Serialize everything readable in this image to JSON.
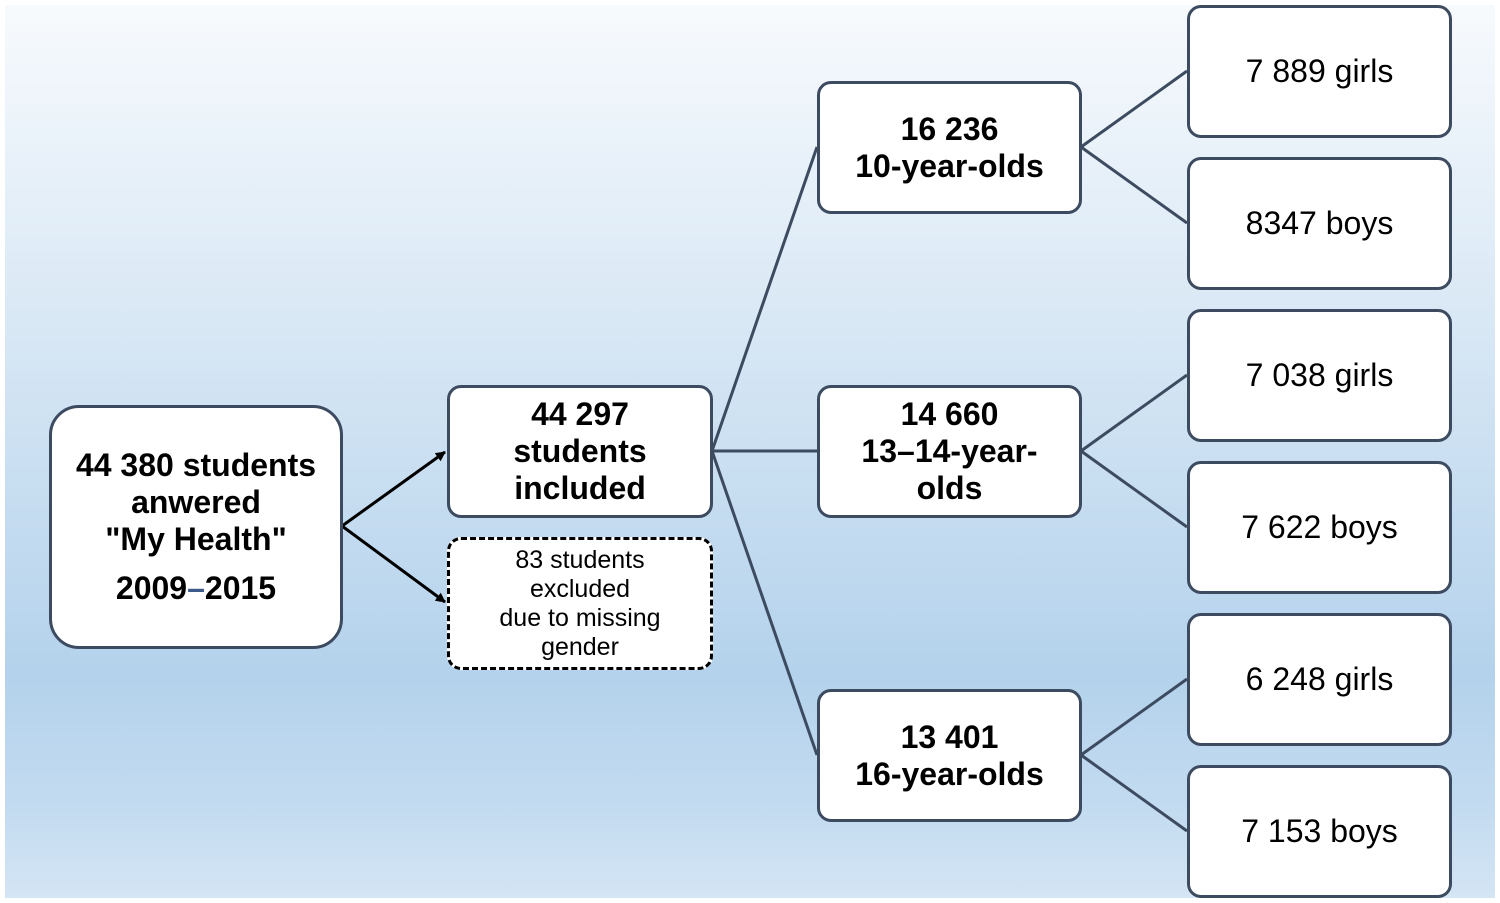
{
  "colors": {
    "border": "#3d4b60",
    "arrow": "#000000",
    "background_top": "#f7fafd",
    "background_mid": "#b4d2ec"
  },
  "root": {
    "line1": "44 380 students",
    "line2": "anwered",
    "line3": "\"My Health\"",
    "year_start": "2009",
    "year_sep": "–",
    "year_end": "2015"
  },
  "included": {
    "line1": "44 297",
    "line2": "students",
    "line3": "included"
  },
  "excluded": {
    "line1": "83 students",
    "line2": "excluded",
    "line3": "due to missing",
    "line4": "gender"
  },
  "ages": [
    {
      "count": "16 236",
      "label": "10-year-olds"
    },
    {
      "count": "14 660",
      "label": "13–14-year-",
      "label2": "olds"
    },
    {
      "count": "13 401",
      "label": "16-year-olds"
    }
  ],
  "leaves": [
    "7 889 girls",
    "8347 boys",
    "7 038 girls",
    "7 622 boys",
    "6 248 girls",
    "7 153 boys"
  ]
}
